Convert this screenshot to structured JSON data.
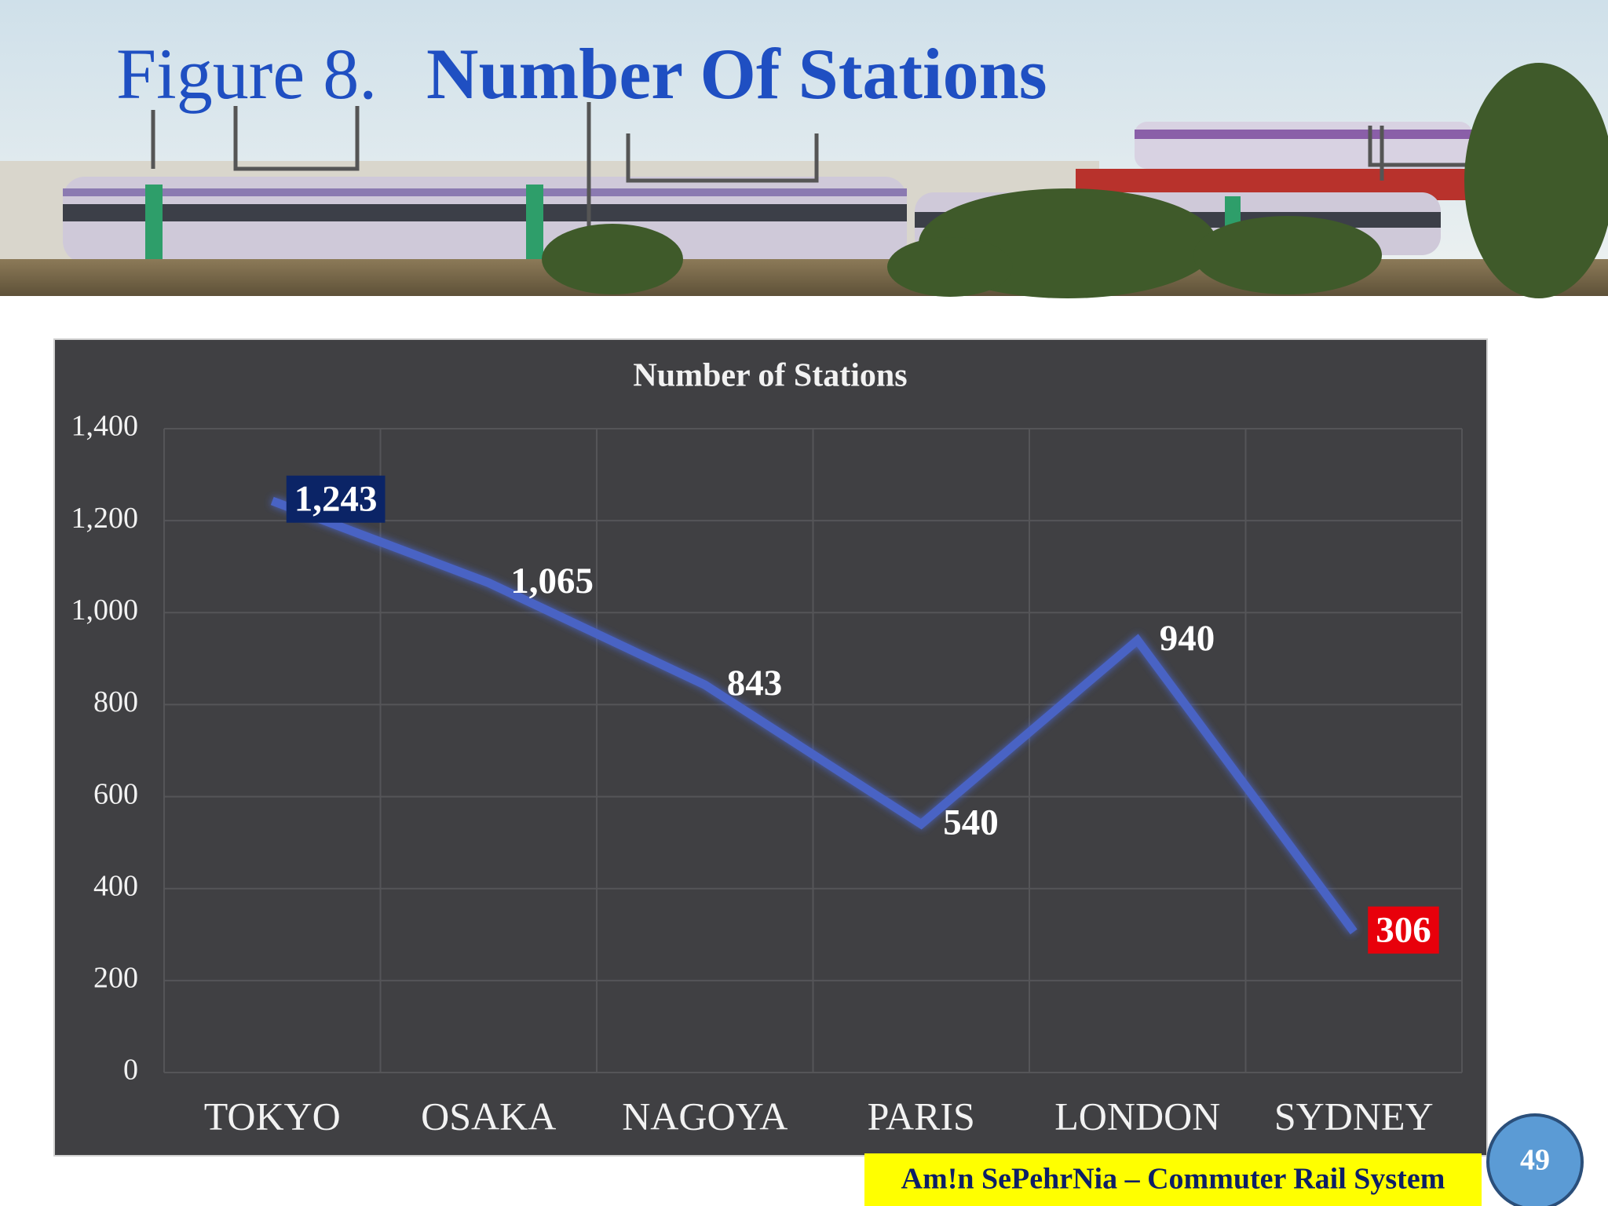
{
  "slide": {
    "figure_label": "Figure 8.",
    "title": "Number Of Stations",
    "footer": "Am!n SePehrNia – Commuter Rail System",
    "page_number": "49"
  },
  "chart_data": {
    "type": "line",
    "title": "Number of Stations",
    "categories": [
      "TOKYO",
      "OSAKA",
      "NAGOYA",
      "PARIS",
      "LONDON",
      "SYDNEY"
    ],
    "values": [
      1243,
      1065,
      843,
      540,
      940,
      306
    ],
    "value_labels": [
      "1,243",
      "1,065",
      "843",
      "540",
      "940",
      "306"
    ],
    "color": "#4a63c4",
    "ylim": [
      0,
      1400
    ],
    "yticks": [
      0,
      200,
      400,
      600,
      800,
      {
        "value": 1000,
        "label": "1,000"
      },
      {
        "value": 1200,
        "label": "1,200"
      },
      {
        "value": 1400,
        "label": "1,400"
      }
    ],
    "grid": true
  }
}
